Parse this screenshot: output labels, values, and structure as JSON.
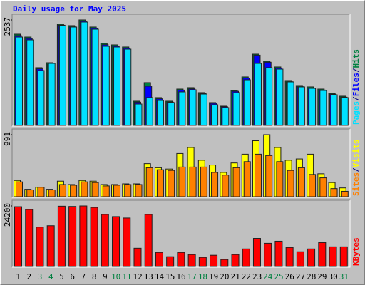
{
  "chart_data": [
    {
      "type": "bar",
      "title": "Daily usage for May 2025",
      "ylim": [
        0,
        2537
      ],
      "yticks": [
        2537
      ],
      "legend_separator": "/",
      "series": [
        {
          "name": "Pages",
          "color": "#00e0ff",
          "values": [
            2125,
            2057,
            1320,
            1491,
            2400,
            2366,
            2486,
            2314,
            1903,
            1886,
            1834,
            514,
            669,
            600,
            549,
            806,
            857,
            754,
            497,
            429,
            788,
            1097,
            1491,
            1389,
            1354,
            1046,
            926,
            891,
            840,
            737,
            669
          ]
        },
        {
          "name": "Files",
          "color": "#0000ff",
          "values": [
            2160,
            2090,
            1360,
            1475,
            2410,
            2370,
            2510,
            2340,
            1940,
            1910,
            1860,
            560,
            943,
            640,
            560,
            850,
            880,
            770,
            530,
            450,
            820,
            1140,
            1690,
            1520,
            1380,
            1050,
            930,
            900,
            850,
            750,
            680
          ]
        },
        {
          "name": "Hits",
          "color": "#008040",
          "values": [
            2194,
            2125,
            1389,
            1508,
            2434,
            2400,
            2537,
            2366,
            1971,
            1937,
            1886,
            583,
            1029,
            669,
            583,
            874,
            909,
            789,
            549,
            463,
            840,
            1166,
            1714,
            1543,
            1406,
            1080,
            960,
            926,
            874,
            771,
            703
          ]
        }
      ]
    },
    {
      "type": "bar",
      "ylim": [
        0,
        991
      ],
      "yticks": [
        991
      ],
      "legend_separator": "/",
      "series": [
        {
          "name": "Sites",
          "color": "#ff8000",
          "values": [
            237,
            108,
            151,
            108,
            194,
            183,
            237,
            226,
            172,
            183,
            194,
            194,
            463,
            431,
            420,
            474,
            474,
            474,
            388,
            345,
            463,
            560,
            679,
            657,
            560,
            420,
            463,
            355,
            301,
            129,
            86
          ]
        },
        {
          "name": "Visits",
          "color": "#ffff00",
          "values": [
            259,
            118,
            151,
            118,
            248,
            194,
            259,
            248,
            194,
            194,
            205,
            205,
            528,
            463,
            442,
            690,
            786,
            582,
            506,
            388,
            539,
            679,
            894,
            991,
            786,
            582,
            603,
            679,
            366,
            226,
            140
          ]
        }
      ]
    },
    {
      "type": "bar",
      "ylim": [
        0,
        24200
      ],
      "yticks": [
        24200
      ],
      "categories": [
        "1",
        "2",
        "3",
        "4",
        "5",
        "6",
        "7",
        "8",
        "9",
        "10",
        "11",
        "12",
        "13",
        "14",
        "15",
        "16",
        "17",
        "18",
        "19",
        "20",
        "21",
        "22",
        "23",
        "24",
        "25",
        "26",
        "27",
        "28",
        "29",
        "30",
        "31"
      ],
      "category_colors": [
        "#000000",
        "#000000",
        "#008040",
        "#008040",
        "#000000",
        "#000000",
        "#000000",
        "#000000",
        "#000000",
        "#008040",
        "#008040",
        "#000000",
        "#000000",
        "#000000",
        "#000000",
        "#000000",
        "#008040",
        "#008040",
        "#000000",
        "#000000",
        "#000000",
        "#000000",
        "#000000",
        "#008040",
        "#008040",
        "#000000",
        "#000000",
        "#000000",
        "#000000",
        "#000000",
        "#008040"
      ],
      "series": [
        {
          "name": "KBytes",
          "color": "#ff0000",
          "values": [
            23900,
            22770,
            15740,
            16300,
            24100,
            24000,
            24200,
            23600,
            20800,
            19950,
            19380,
            7310,
            20800,
            5620,
            3930,
            5620,
            4780,
            3650,
            4500,
            2810,
            4780,
            7030,
            11240,
            9280,
            10120,
            7590,
            5900,
            7030,
            9560,
            7870,
            7870
          ]
        }
      ]
    }
  ]
}
